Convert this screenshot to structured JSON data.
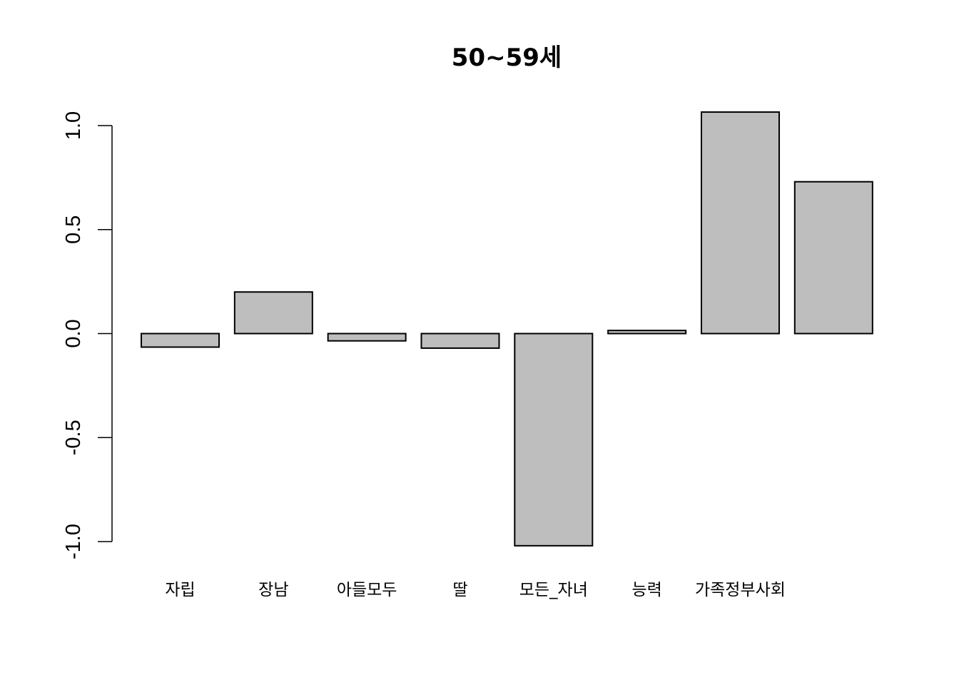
{
  "chart_data": {
    "type": "bar",
    "title": "50~59세",
    "xlabel": "",
    "ylabel": "",
    "categories": [
      "자립",
      "장남",
      "아들모두",
      "딸",
      "모든_자녀",
      "능력",
      "가족정부사회",
      ""
    ],
    "values": [
      -0.065,
      0.2,
      -0.035,
      -0.07,
      -1.02,
      0.015,
      1.065,
      0.73
    ],
    "ylim": [
      -1.0,
      1.0
    ],
    "yticks": [
      -1.0,
      -0.5,
      0.0,
      0.5,
      1.0
    ],
    "ytick_labels": [
      "-1.0",
      "-0.5",
      "0.0",
      "0.5",
      "1.0"
    ],
    "bar_color": "#bebebe",
    "bar_edge_color": "#000000",
    "grid": false,
    "legend": "none"
  }
}
